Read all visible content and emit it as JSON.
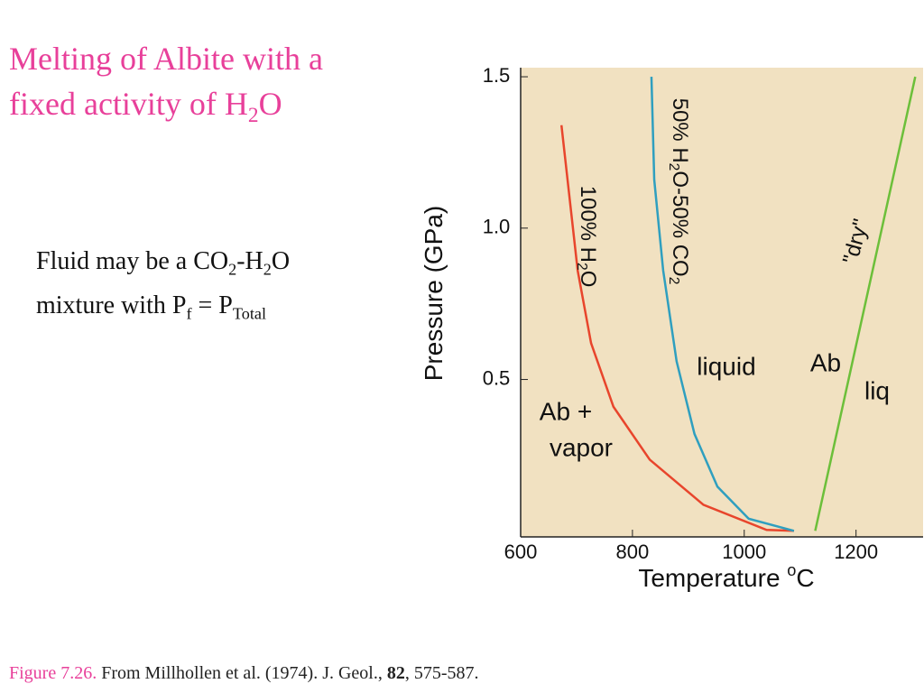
{
  "slide": {
    "title": [
      {
        "text": "Melting of Albite with a fixed activity of H"
      },
      {
        "text": "2",
        "sub": true
      },
      {
        "text": "O"
      }
    ],
    "body": [
      {
        "text": "Fluid may be a CO"
      },
      {
        "text": "2",
        "sub": true
      },
      {
        "text": "-H"
      },
      {
        "text": "2",
        "sub": true
      },
      {
        "text": "O mixture with P"
      },
      {
        "text": "f",
        "sub": true
      },
      {
        "text": " = P"
      },
      {
        "text": "Total",
        "sub": true
      }
    ],
    "caption": [
      {
        "text": "Figure 7.26.",
        "accent": true
      },
      {
        "text": " From Millhollen et al. (1974). J. Geol., "
      },
      {
        "text": "82",
        "bold": true
      },
      {
        "text": ", 575-587."
      }
    ]
  },
  "chart_data": {
    "type": "line",
    "x_label": [
      {
        "text": "Temperature "
      },
      {
        "text": "o",
        "sup": true
      },
      {
        "text": "C"
      }
    ],
    "y_label": [
      {
        "text": "Pressure (GPa)"
      }
    ],
    "xlim": [
      600,
      1320
    ],
    "ylim": [
      -0.02,
      1.53
    ],
    "xticks": [
      600,
      800,
      1000,
      1200
    ],
    "yticks": [
      0.5,
      {
        "value": 1,
        "label": "1.0"
      },
      1.5
    ],
    "series": [
      {
        "label": [
          {
            "text": "100% H"
          },
          {
            "text": "2",
            "sub": true
          },
          {
            "text": "O"
          }
        ],
        "color": "#e8452c",
        "x": [
          673,
          702,
          726,
          766,
          831,
          927,
          1040,
          1089
        ],
        "values": [
          1.34,
          0.86,
          0.62,
          0.41,
          0.235,
          0.086,
          0.003,
          0
        ]
      },
      {
        "label": [
          {
            "text": "50% H"
          },
          {
            "text": "2",
            "sub": true
          },
          {
            "text": "O-50% CO"
          },
          {
            "text": "2",
            "sub": true
          }
        ],
        "color": "#2f9fbf",
        "x": [
          834,
          839,
          855,
          879,
          911,
          952,
          1008,
          1089
        ],
        "values": [
          1.5,
          1.16,
          0.86,
          0.56,
          0.32,
          0.146,
          0.04,
          0
        ]
      },
      {
        "label": [
          {
            "text": "\"dry\""
          }
        ],
        "color": "#6cbf3a",
        "x": [
          1127,
          1306
        ],
        "values": [
          0,
          1.5
        ]
      }
    ],
    "annotations": [
      "Ab +",
      "vapor",
      "liquid",
      "Ab",
      "liq"
    ]
  }
}
